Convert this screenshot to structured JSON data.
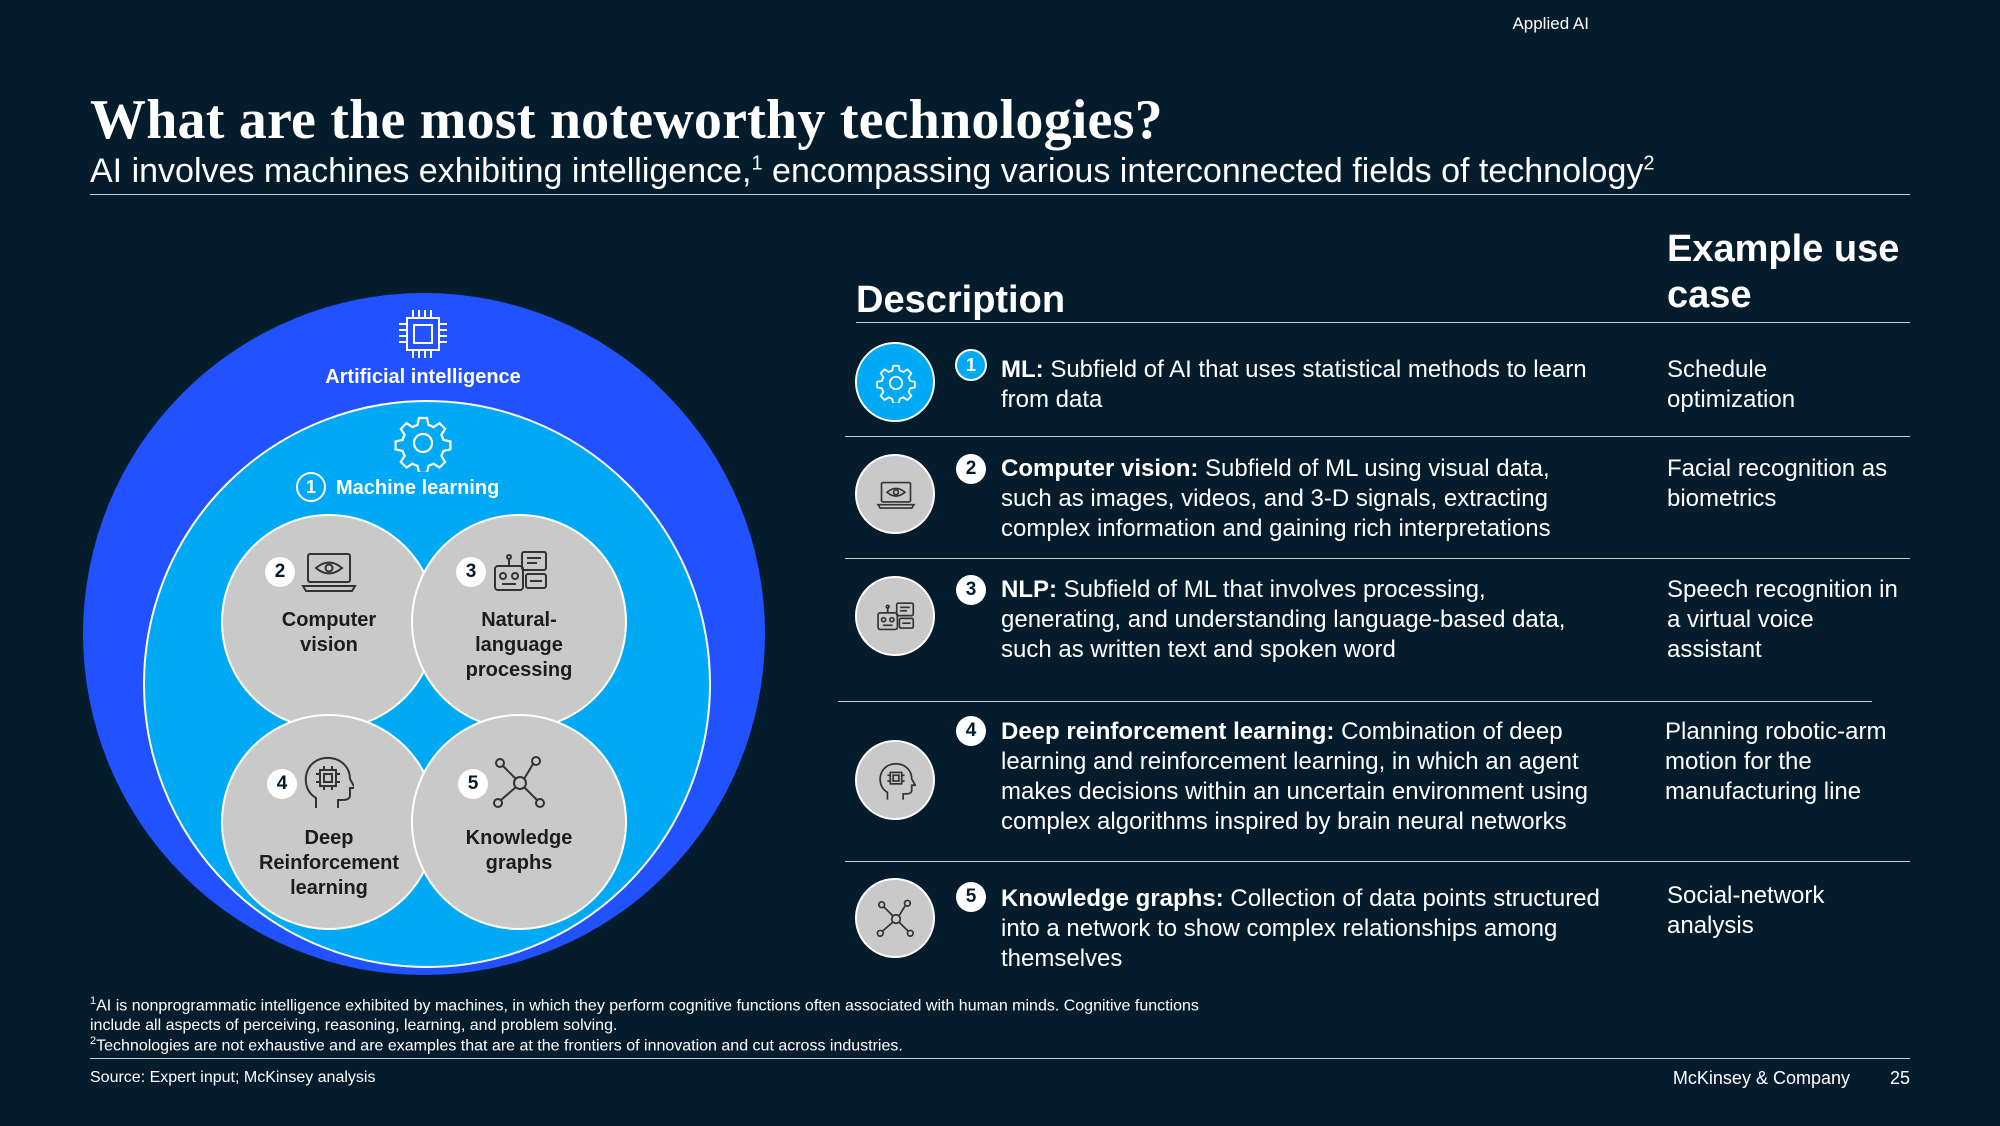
{
  "header": {
    "section_tag": "Applied AI",
    "title": "What are the most noteworthy technologies?",
    "subtitle_part1": "AI involves machines exhibiting intelligence,",
    "subtitle_sup1": "1",
    "subtitle_part2": " encompassing various interconnected fields of technology",
    "subtitle_sup2": "2"
  },
  "diagram": {
    "ai_label": "Artificial intelligence",
    "ml_number": "1",
    "ml_label": "Machine learning",
    "nodes": [
      {
        "number": "2",
        "label_lines": [
          "Computer",
          "vision"
        ],
        "icon": "laptop-eye-icon"
      },
      {
        "number": "3",
        "label_lines": [
          "Natural-",
          "language",
          "processing"
        ],
        "icon": "robot-chat-icon"
      },
      {
        "number": "4",
        "label_lines": [
          "Deep",
          "Reinforcement",
          "learning"
        ],
        "icon": "head-chip-icon"
      },
      {
        "number": "5",
        "label_lines": [
          "Knowledge",
          "graphs"
        ],
        "icon": "network-graph-icon"
      }
    ]
  },
  "table": {
    "description_header": "Description",
    "use_case_header_line1": "Example use",
    "use_case_header_line2": "case",
    "rows": [
      {
        "number": "1",
        "term": "ML:",
        "desc_lines": [
          "Subfield of AI that uses statistical methods to learn",
          "from data"
        ],
        "use_lines": [
          "Schedule",
          "optimization"
        ],
        "icon": "gear-icon"
      },
      {
        "number": "2",
        "term": "Computer vision:",
        "desc_lines": [
          "Subfield of ML using visual data,",
          "such as images, videos, and 3-D signals, extracting",
          "complex information and gaining rich interpretations"
        ],
        "use_lines": [
          "Facial recognition as",
          "biometrics"
        ],
        "icon": "laptop-eye-icon"
      },
      {
        "number": "3",
        "term": "NLP:",
        "desc_lines": [
          "Subfield of ML that involves processing,",
          "generating, and understanding language-based data,",
          "such as written text and spoken word"
        ],
        "use_lines": [
          "Speech recognition in",
          "a virtual voice",
          "assistant"
        ],
        "icon": "robot-chat-icon"
      },
      {
        "number": "4",
        "term": "Deep reinforcement learning:",
        "desc_lines": [
          "Combination of deep",
          "learning and reinforcement learning, in which an agent",
          "makes decisions within an uncertain environment using",
          "complex algorithms inspired by brain neural networks"
        ],
        "use_lines": [
          "Planning robotic-arm",
          "motion for the",
          "manufacturing line"
        ],
        "icon": "head-chip-icon"
      },
      {
        "number": "5",
        "term": "Knowledge graphs:",
        "desc_lines": [
          "Collection of data points structured",
          "into a network to show complex relationships among",
          "themselves"
        ],
        "use_lines": [
          "Social-network",
          "analysis"
        ],
        "icon": "network-graph-icon"
      }
    ]
  },
  "footnotes": {
    "fn1_sup": "1",
    "fn1_line1": "AI is nonprogrammatic intelligence exhibited by machines, in which they perform cognitive functions often associated with human minds. Cognitive functions",
    "fn1_line2": "include all aspects of perceiving, reasoning, learning, and problem solving.",
    "fn2_sup": "2",
    "fn2": "Technologies are not exhaustive and are examples that are at the frontiers of innovation and cut across industries.",
    "source": "Source: Expert input; McKinsey analysis"
  },
  "footer": {
    "brand": "McKinsey & Company",
    "page_number": "25"
  },
  "colors": {
    "background": "#051c2c",
    "ai_blue": "#2251ff",
    "ml_cyan": "#00a9f4",
    "node_gray": "#c9c9c9"
  }
}
